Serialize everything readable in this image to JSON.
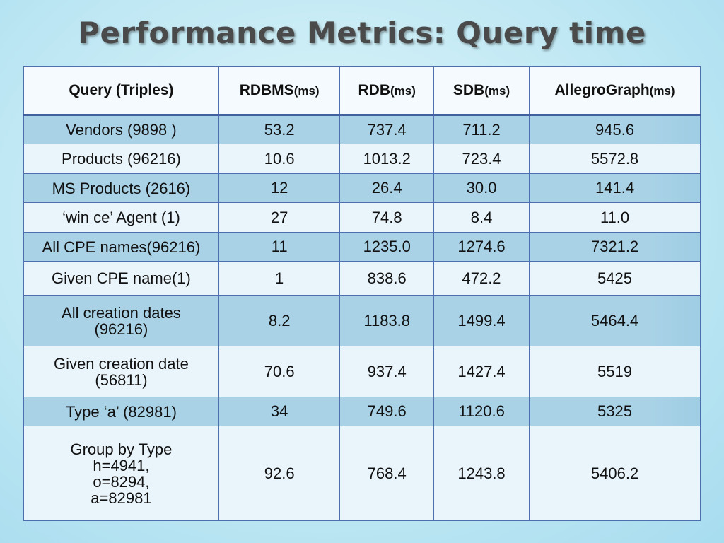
{
  "title": "Performance Metrics: Query time",
  "table": {
    "headers": [
      {
        "name": "Query (Triples)",
        "unit": ""
      },
      {
        "name": "RDBMS",
        "unit": "(ms)"
      },
      {
        "name": "RDB",
        "unit": "(ms)"
      },
      {
        "name": "SDB",
        "unit": "(ms)"
      },
      {
        "name": "AllegroGraph",
        "unit": "(ms)"
      }
    ],
    "rows": [
      [
        "Vendors (9898 )",
        "53.2",
        "737.4",
        "711.2",
        "945.6"
      ],
      [
        "Products (96216)",
        "10.6",
        "1013.2",
        "723.4",
        "5572.8"
      ],
      [
        "MS Products (2616)",
        "12",
        "26.4",
        "30.0",
        "141.4"
      ],
      [
        "‘win ce’ Agent (1)",
        "27",
        "74.8",
        "8.4",
        "11.0"
      ],
      [
        "All CPE names(96216)",
        "11",
        "1235.0",
        "1274.6",
        "7321.2"
      ],
      [
        "Given CPE name(1)",
        "1",
        "838.6",
        "472.2",
        "5425"
      ],
      [
        "All creation dates\n(96216)",
        "8.2",
        "1183.8",
        "1499.4",
        "5464.4"
      ],
      [
        "Given creation date\n(56811)",
        "70.6",
        "937.4",
        "1427.4",
        "5519"
      ],
      [
        "Type ‘a’ (82981)",
        "34",
        "749.6",
        "1120.6",
        "5325"
      ],
      [
        "Group by Type\nh=4941,\no=8294,\na=82981",
        "92.6",
        "768.4",
        "1243.8",
        "5406.2"
      ]
    ]
  }
}
